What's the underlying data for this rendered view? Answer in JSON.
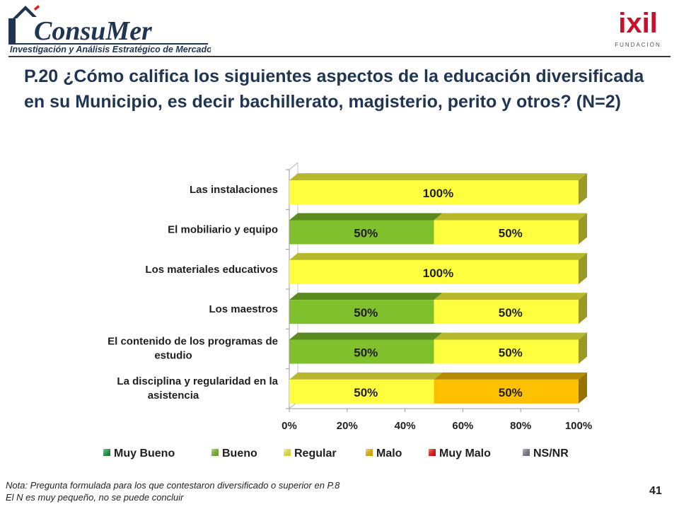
{
  "header": {
    "brand_name": "ConsuMer",
    "brand_tagline": "Investigación y Análisis Estratégico de Mercados",
    "partner_name": "ixil",
    "partner_sub": "FUNDACIÓN"
  },
  "title": "P.20 ¿Cómo califica los siguientes aspectos de la educación diversificada en su Municipio, es decir bachillerato, magisterio, perito y otros? (N=2)",
  "chart_data": {
    "type": "bar",
    "orientation": "horizontal",
    "stacked": true,
    "percent_stacked": true,
    "xlim": [
      0,
      100
    ],
    "x_ticks": [
      "0%",
      "20%",
      "40%",
      "60%",
      "80%",
      "100%"
    ],
    "categories": [
      [
        "Las instalaciones"
      ],
      [
        "El mobiliario y equipo"
      ],
      [
        "Los materiales educativos"
      ],
      [
        "Los maestros"
      ],
      [
        "El contenido de los programas de",
        "estudio"
      ],
      [
        "La disciplina y regularidad en la",
        "asistencia"
      ]
    ],
    "series": [
      {
        "name": "Muy Bueno",
        "color": "#0d9e3a",
        "values": [
          0,
          0,
          0,
          0,
          0,
          0
        ]
      },
      {
        "name": "Bueno",
        "color": "#7fc02c",
        "values": [
          0,
          50,
          0,
          50,
          50,
          0
        ]
      },
      {
        "name": "Regular",
        "color": "#ffff40",
        "values": [
          100,
          50,
          100,
          50,
          50,
          50
        ]
      },
      {
        "name": "Malo",
        "color": "#ffc000",
        "values": [
          0,
          0,
          0,
          0,
          0,
          50
        ]
      },
      {
        "name": "Muy Malo",
        "color": "#ff0000",
        "values": [
          0,
          0,
          0,
          0,
          0,
          0
        ]
      },
      {
        "name": "NS/NR",
        "color": "#7f7f8f",
        "values": [
          0,
          0,
          0,
          0,
          0,
          0
        ]
      }
    ],
    "legend_position": "bottom",
    "grid": false
  },
  "note": {
    "line1": "Nota: Pregunta formulada para los que contestaron diversificado o superior en P.8",
    "line2": "El N es muy pequeño, no se puede concluir"
  },
  "page_number": "41"
}
